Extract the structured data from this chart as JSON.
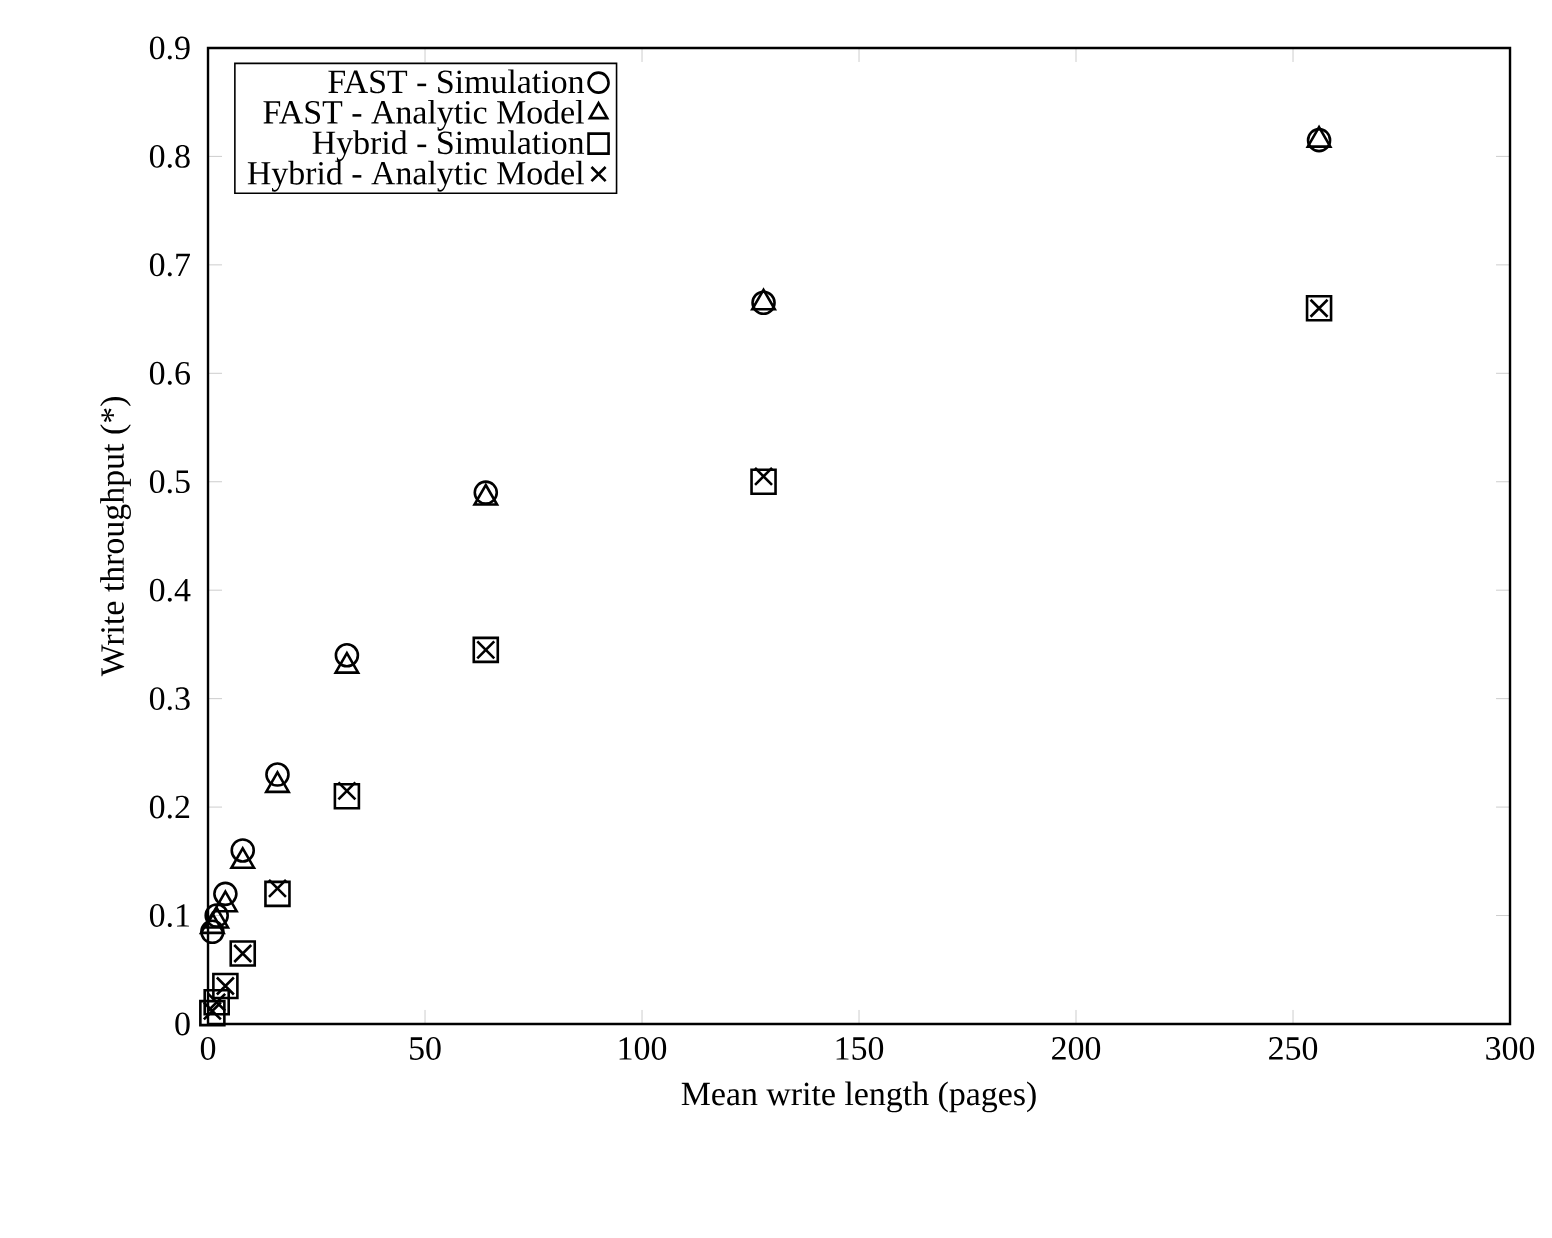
{
  "chart_data": {
    "type": "scatter",
    "xlabel": "Mean write length (pages)",
    "ylabel": "Write throughput (*)",
    "x": [
      1,
      2,
      4,
      8,
      16,
      32,
      64,
      128,
      256
    ],
    "series": [
      {
        "name": "FAST - Simulation",
        "color": "#000000",
        "marker": "circle",
        "values": [
          0.085,
          0.1,
          0.12,
          0.16,
          0.23,
          0.34,
          0.49,
          0.665,
          0.815
        ]
      },
      {
        "name": "FAST - Analytic Model",
        "color": "#000000",
        "marker": "triangle",
        "values": [
          0.09,
          0.095,
          0.11,
          0.15,
          0.22,
          0.33,
          0.485,
          0.665,
          0.815
        ]
      },
      {
        "name": "Hybrid - Simulation",
        "color": "#000000",
        "marker": "square",
        "values": [
          0.01,
          0.02,
          0.035,
          0.065,
          0.12,
          0.21,
          0.345,
          0.5,
          0.66
        ]
      },
      {
        "name": "Hybrid - Analytic Model",
        "color": "#000000",
        "marker": "cross",
        "values": [
          0.012,
          0.02,
          0.035,
          0.065,
          0.125,
          0.215,
          0.345,
          0.505,
          0.66
        ]
      }
    ],
    "xlim": [
      0,
      300
    ],
    "ylim": [
      0,
      0.9
    ],
    "xticks": [
      0,
      50,
      100,
      150,
      200,
      250,
      300
    ],
    "yticks": [
      0,
      0.1,
      0.2,
      0.3,
      0.4,
      0.5,
      0.6,
      0.7,
      0.8,
      0.9
    ],
    "grid": false,
    "legend": "top left"
  }
}
